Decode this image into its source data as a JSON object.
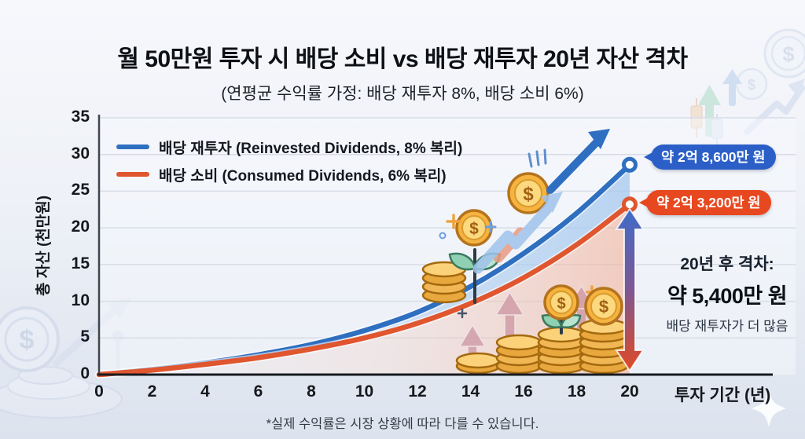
{
  "title": "월 50만원 투자 시 배당 소비 vs 배당 재투자 20년 자산 격차",
  "subtitle": "(연평균 수익률 가정: 배당 재투자 8%, 배당 소비 6%)",
  "footnote": "*실제 수익률은 시장 상황에 따라 다를 수 있습니다.",
  "chart_data": {
    "type": "line",
    "x": [
      0,
      2,
      4,
      6,
      8,
      10,
      12,
      14,
      16,
      18,
      20
    ],
    "series": [
      {
        "name": "배당 재투자 (Reinvested Dividends, 8% 복리)",
        "color": "#2e6fc0",
        "values": [
          0,
          0.7,
          1.6,
          2.7,
          4.1,
          6.0,
          8.5,
          12.0,
          16.5,
          22.0,
          28.6
        ],
        "end_label": "약 2억 8,600만 원"
      },
      {
        "name": "배당 소비 (Consumed Dividends, 6% 복리)",
        "color": "#e0562f",
        "values": [
          0,
          0.6,
          1.4,
          2.3,
          3.5,
          5.0,
          7.0,
          9.7,
          13.2,
          17.7,
          23.2
        ],
        "end_label": "약 2억 3,200만 원"
      }
    ],
    "xlabel": "투자 기간 (년)",
    "ylabel": "총 자산 (천만원)",
    "xticks": [
      0,
      2,
      4,
      6,
      8,
      10,
      12,
      14,
      16,
      18,
      20
    ],
    "yticks": [
      0,
      5,
      10,
      15,
      20,
      25,
      30,
      35
    ],
    "xlim": [
      0,
      20
    ],
    "ylim": [
      0,
      35
    ],
    "grid": "horizontal",
    "legend_position": "top-left"
  },
  "annotations": {
    "endpoint_reinvested": "약 2억 8,600만 원",
    "endpoint_consumed": "약 2억 3,200만 원",
    "gap_title": "20년 후 격차:",
    "gap_value": "약 5,400만 원",
    "gap_note": "배당 재투자가 더 많음"
  },
  "colors": {
    "reinvested_line": "#2e6fc0",
    "consumed_line": "#e0562f",
    "reinvested_badge_bg": "#2b5fc7",
    "consumed_badge_bg": "#e8481f",
    "fill_between": "#aecdf0",
    "fill_under_consumed": "#f2b098",
    "gap_arrow_top": "#3f6cc8",
    "gap_arrow_bottom": "#df4a24"
  },
  "decor": {
    "coin_symbol": "$"
  }
}
